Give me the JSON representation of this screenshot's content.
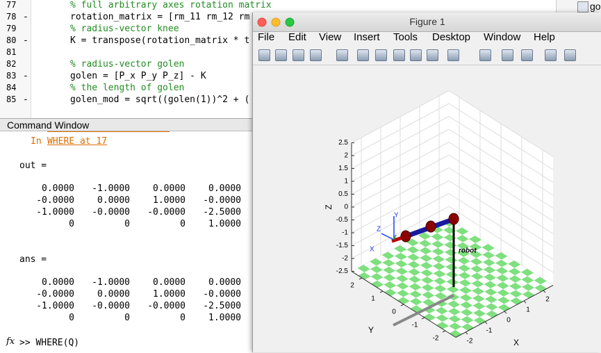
{
  "editor": {
    "lines": [
      {
        "number": "77",
        "code": "% full arbitrary axes rotation matrix"
      },
      {
        "number": "78",
        "marker": "-",
        "code": "rotation_matrix = [rm_11 rm_12 rm"
      },
      {
        "number": "79",
        "code": "% radius-vector knee"
      },
      {
        "number": "80",
        "marker": "-",
        "code": "K = transpose(rotation_matrix * t"
      },
      {
        "number": "81"
      },
      {
        "number": "82",
        "code": "% radius-vector golen"
      },
      {
        "number": "83",
        "marker": "-",
        "code": "golen = [P_x P_y P_z] - K"
      },
      {
        "number": "84",
        "code": "% the length of golen"
      },
      {
        "number": "85",
        "marker": "-",
        "code": "golen_mod = sqrt((golen(1))^2 + ("
      }
    ]
  },
  "right_panel": {
    "item": "go"
  },
  "command_window": {
    "title": "Command Window",
    "error": {
      "prefix": "In",
      "link": "WHERE at 17"
    },
    "outputs": [
      {
        "name": "out =",
        "rows": [
          [
            "0.0000",
            "-1.0000",
            "0.0000",
            "0.0000"
          ],
          [
            "-0.0000",
            "0.0000",
            "1.0000",
            "-0.0000"
          ],
          [
            "-1.0000",
            "-0.0000",
            "-0.0000",
            "-2.5000"
          ],
          [
            "0",
            "0",
            "0",
            "1.0000"
          ]
        ]
      },
      {
        "name": "ans =",
        "rows": [
          [
            "0.0000",
            "-1.0000",
            "0.0000",
            "0.0000"
          ],
          [
            "-0.0000",
            "0.0000",
            "1.0000",
            "-0.0000"
          ],
          [
            "-1.0000",
            "-0.0000",
            "-0.0000",
            "-2.5000"
          ],
          [
            "0",
            "0",
            "0",
            "1.0000"
          ]
        ]
      }
    ],
    "fx_icon": "fx",
    "prompt": ">> WHERE(Q)"
  },
  "figure": {
    "title": "Figure 1",
    "menu": [
      "File",
      "Edit",
      "View",
      "Insert",
      "Tools",
      "Desktop",
      "Window",
      "Help"
    ],
    "axes": {
      "xlabel": "X",
      "ylabel": "Y",
      "zlabel": "Z",
      "xlim": [
        -2.5,
        2.5
      ],
      "ylim": [
        -2.5,
        2.5
      ],
      "zlim": [
        -2.5,
        2.5
      ],
      "xticks": [
        -2,
        -1,
        0,
        1,
        2
      ],
      "yticks": [
        -2,
        -1,
        0,
        1,
        2
      ],
      "zticks": [
        -2.5,
        -2,
        -1.5,
        -1,
        -0.5,
        0,
        0.5,
        1,
        1.5,
        2,
        2.5
      ],
      "grid": true,
      "annotation": "robot",
      "triad": {
        "x": "X",
        "y": "Y",
        "z": "Z"
      }
    }
  }
}
